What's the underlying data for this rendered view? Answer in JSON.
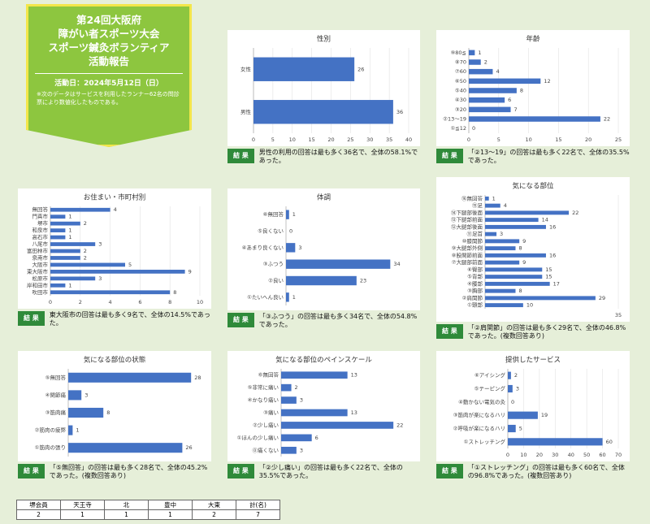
{
  "header": {
    "lines": [
      "第24回大阪府",
      "障がい者スポーツ大会",
      "スポーツ鍼灸ボランティア",
      "活動報告"
    ],
    "date": "活動日：2024年5月12日（日）",
    "note": "※次のデータはサービスを利用したランナー62名の問診票により数値化したものである。"
  },
  "result_label": "結 果",
  "chart_data": [
    {
      "type": "bar",
      "title": "性別",
      "categories": [
        "女性",
        "男性"
      ],
      "values": [
        26,
        36
      ],
      "color": "#4472c4",
      "xlim": [
        0,
        40
      ],
      "xticks": [
        0,
        5,
        10,
        15,
        20,
        25,
        30,
        35,
        40
      ],
      "result": "男性の利用の回答は最も多く36名で、全体の58.1%であった。"
    },
    {
      "type": "bar",
      "title": "年齢",
      "categories": [
        "⑨80≦",
        "⑧70",
        "⑦60",
        "⑥50",
        "⑤40",
        "④30",
        "③20",
        "②13～19",
        "①≦12"
      ],
      "values": [
        1,
        2,
        4,
        12,
        8,
        6,
        7,
        22,
        0
      ],
      "color": "#4472c4",
      "xlim": [
        0,
        25
      ],
      "xticks": [
        0,
        5,
        10,
        15,
        20,
        25
      ],
      "result": "「②13～19」の回答は最も多く22名で、全体の35.5%であった。"
    },
    {
      "type": "bar",
      "title": "お住まい・市町村別",
      "categories": [
        "無回答",
        "門真市",
        "堺市",
        "和泉市",
        "高石市",
        "八尾市",
        "富田林市",
        "泉南市",
        "大阪市",
        "東大阪市",
        "松原市",
        "岸和田市",
        "吹田市"
      ],
      "values": [
        4,
        1,
        2,
        1,
        1,
        3,
        2,
        2,
        5,
        9,
        3,
        1,
        8
      ],
      "color": "#4472c4",
      "xlim": [
        0,
        10
      ],
      "xticks": [
        0,
        2,
        4,
        6,
        8,
        10
      ],
      "result": "東大阪市の回答は最も多く9名で、全体の14.5%であった。"
    },
    {
      "type": "bar",
      "title": "体調",
      "categories": [
        "⑥無回答",
        "⑤良くない",
        "④あまり良くない",
        "③ふつう",
        "②良い",
        "①たいへん良い"
      ],
      "values": [
        1,
        0,
        3,
        34,
        23,
        1
      ],
      "color": "#4472c4",
      "xlim": [
        0,
        40
      ],
      "result": "「③ふつう」の回答は最も多く34名で、全体の54.8%であった。"
    },
    {
      "type": "bar",
      "title": "気になる部位",
      "categories": [
        "⑯無回答",
        "⑮足",
        "⑭下腿部後面",
        "⑬下腿部前面",
        "⑫大腿部後面",
        "⑪足首",
        "⑩膝関節",
        "⑨大腿部外側",
        "⑧股関節前面",
        "⑦大腿部前面",
        "⑥臀部",
        "⑤背部",
        "④腰部",
        "③胸部",
        "②肩関節",
        "①頸部"
      ],
      "values": [
        1,
        4,
        22,
        14,
        16,
        3,
        9,
        8,
        16,
        9,
        15,
        15,
        17,
        8,
        29,
        10
      ],
      "color": "#4472c4",
      "xlim": [
        0,
        35
      ],
      "xticks": [
        35
      ],
      "result": "「②肩関節」の回答は最も多く29名で、全体の46.8%であった。(複数回答あり)"
    },
    {
      "type": "bar",
      "title": "気になる部位の状態",
      "categories": [
        "⑤無回答",
        "④関節痛",
        "③筋肉痛",
        "②筋肉の疲弊",
        "①筋肉の張り"
      ],
      "values": [
        28,
        3,
        8,
        1,
        26
      ],
      "color": "#4472c4",
      "xlim": [
        0,
        30
      ],
      "result": "「⑤無回答」の回答は最も多く28名で、全体の45.2%であった。(複数回答あり)"
    },
    {
      "type": "bar",
      "title": "気になる部位のペインスケール",
      "categories": [
        "⑥無回答",
        "⑤非常に痛い",
        "④かなり痛い",
        "③痛い",
        "②少し痛い",
        "①ほんの少し痛い",
        "⓪痛くない"
      ],
      "values": [
        13,
        2,
        3,
        13,
        22,
        6,
        3
      ],
      "color": "#4472c4",
      "xlim": [
        0,
        25
      ],
      "result": "「②少し痛い」の回答は最も多く22名で、全体の35.5%であった。"
    },
    {
      "type": "bar",
      "title": "提供したサービス",
      "categories": [
        "⑥アイシング",
        "⑤テーピング",
        "④動かない電気の灸",
        "③筋肉が楽になるハリ",
        "②呼吸が楽になるハリ",
        "①ストレッチング"
      ],
      "values": [
        2,
        3,
        0,
        19,
        5,
        60
      ],
      "color": "#4472c4",
      "xlim": [
        0,
        70
      ],
      "xticks": [
        0,
        10,
        20,
        30,
        40,
        50,
        60,
        70
      ],
      "result": "「①ストレッチング」の回答は最も多く60名で、全体の96.8%であった。(複数回答あり)"
    }
  ],
  "table": {
    "header": [
      "堺会員",
      "天王寺",
      "北",
      "豊中",
      "大東",
      "計(名)"
    ],
    "rows": [
      [
        2,
        1,
        1,
        1,
        2,
        7
      ]
    ]
  }
}
